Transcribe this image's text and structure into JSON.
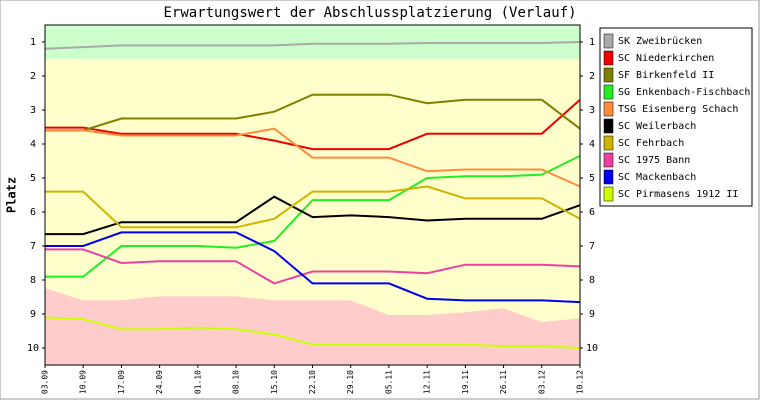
{
  "chart_data": {
    "type": "line",
    "title": "Erwartungswert der Abschlussplatzierung (Verlauf)",
    "y_label": "Platz",
    "categories": [
      "03.09",
      "10.09",
      "17.09",
      "24.09",
      "01.10",
      "08.10",
      "15.10",
      "22.10",
      "29.10",
      "05.11",
      "12.11",
      "19.11",
      "26.11",
      "03.12",
      "10.12"
    ],
    "ylim": [
      0.5,
      10.5
    ],
    "y_inverted": true,
    "yticks": [
      1,
      2,
      3,
      4,
      5,
      6,
      7,
      8,
      9,
      10
    ],
    "promotion_zone": [
      0.5,
      1.5
    ],
    "relegation_zone": [
      8.24,
      8.6,
      8.6,
      8.48,
      8.48,
      8.48,
      8.6,
      8.6,
      8.6,
      9.03,
      9.03,
      8.95,
      8.83,
      9.24,
      9.12
    ],
    "zone_colors": {
      "promotion": "#ccffcc",
      "middle": "#ffffcc",
      "relegation": "#ffcccc"
    },
    "legend": "right",
    "series": [
      {
        "name": "SK Zweibrücken",
        "color": "#aaaaaa",
        "values": [
          1.2,
          1.15,
          1.1,
          1.1,
          1.1,
          1.1,
          1.1,
          1.05,
          1.05,
          1.05,
          1.03,
          1.03,
          1.03,
          1.03,
          1.0
        ]
      },
      {
        "name": "SC Niederkirchen",
        "color": "#ee0000",
        "values": [
          3.52,
          3.52,
          3.7,
          3.7,
          3.7,
          3.7,
          3.9,
          4.15,
          4.15,
          4.15,
          3.7,
          3.7,
          3.7,
          3.7,
          2.7
        ]
      },
      {
        "name": "SF Birkenfeld II",
        "color": "#808000",
        "values": [
          3.6,
          3.6,
          3.25,
          3.25,
          3.25,
          3.25,
          3.05,
          2.55,
          2.55,
          2.55,
          2.8,
          2.7,
          2.7,
          2.7,
          3.55
        ]
      },
      {
        "name": "SG Enkenbach-Fischbach",
        "color": "#22ee22",
        "values": [
          7.9,
          7.9,
          7.0,
          7.0,
          7.0,
          7.05,
          6.85,
          5.65,
          5.65,
          5.65,
          5.0,
          4.95,
          4.95,
          4.9,
          4.35
        ]
      },
      {
        "name": "TSG Eisenberg Schach",
        "color": "#ff8c3c",
        "values": [
          3.6,
          3.6,
          3.75,
          3.75,
          3.75,
          3.75,
          3.55,
          4.4,
          4.4,
          4.4,
          4.8,
          4.75,
          4.75,
          4.75,
          5.25
        ]
      },
      {
        "name": "SC Weilerbach",
        "color": "#000000",
        "values": [
          6.65,
          6.65,
          6.3,
          6.3,
          6.3,
          6.3,
          5.55,
          6.15,
          6.1,
          6.15,
          6.25,
          6.2,
          6.2,
          6.2,
          5.8
        ]
      },
      {
        "name": "SC Fehrbach",
        "color": "#ccb400",
        "values": [
          5.4,
          5.4,
          6.45,
          6.45,
          6.45,
          6.45,
          6.2,
          5.4,
          5.4,
          5.4,
          5.25,
          5.6,
          5.6,
          5.6,
          6.2
        ]
      },
      {
        "name": "SC 1975 Bann",
        "color": "#ee40a0",
        "values": [
          7.1,
          7.1,
          7.5,
          7.45,
          7.45,
          7.45,
          8.1,
          7.75,
          7.75,
          7.75,
          7.8,
          7.55,
          7.55,
          7.55,
          7.6
        ]
      },
      {
        "name": "SC Mackenbach",
        "color": "#0000ee",
        "values": [
          7.0,
          7.0,
          6.6,
          6.6,
          6.6,
          6.6,
          7.15,
          8.1,
          8.1,
          8.1,
          8.55,
          8.6,
          8.6,
          8.6,
          8.65
        ]
      },
      {
        "name": "SC Pirmasens 1912 II",
        "color": "#ccff00",
        "values": [
          9.1,
          9.15,
          9.45,
          9.45,
          9.4,
          9.45,
          9.6,
          9.9,
          9.9,
          9.9,
          9.9,
          9.9,
          9.95,
          9.95,
          10.0
        ]
      }
    ]
  }
}
